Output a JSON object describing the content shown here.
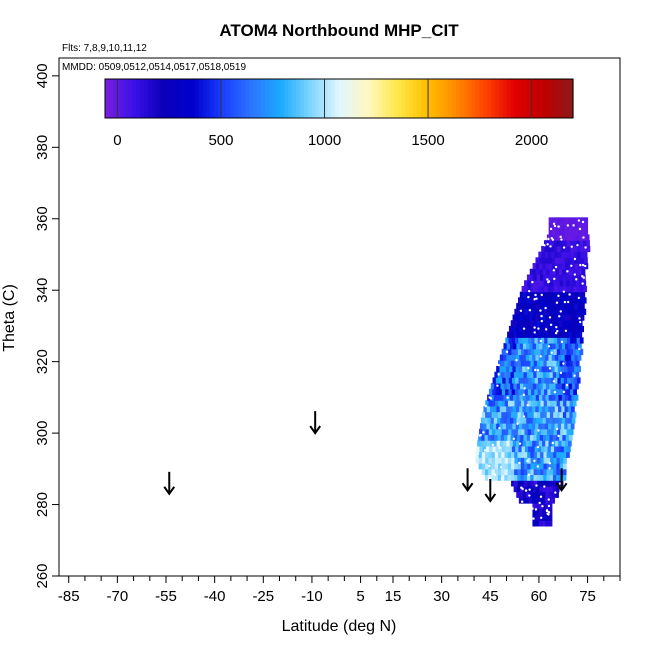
{
  "chart_data": {
    "type": "heatmap",
    "title": "ATOM4 Northbound MHP_CIT",
    "flights_note": "Flts: 7,8,9,10,11,12",
    "dates_note": "MMDD: 0509,0512,0514,0517,0518,0519",
    "xlabel": "Latitude (deg N)",
    "ylabel": "Theta (C)",
    "xlim": [
      -88,
      85
    ],
    "ylim": [
      260,
      405
    ],
    "x_ticks": [
      -85,
      -70,
      -55,
      -40,
      -25,
      -10,
      5,
      15,
      30,
      45,
      60,
      75
    ],
    "x_tick_labels": [
      "-85",
      "-70",
      "-55",
      "-40",
      "-25",
      "-10",
      "5",
      "15",
      "30",
      "45",
      "60",
      "75"
    ],
    "x_minor_ticks": [
      -80,
      -75,
      -65,
      -60,
      -50,
      -45,
      -35,
      -30,
      -20,
      -15,
      -5,
      0,
      10,
      20,
      25,
      35,
      40,
      50,
      55,
      65,
      70,
      80,
      85
    ],
    "y_ticks": [
      260,
      280,
      300,
      320,
      340,
      360,
      380,
      400
    ],
    "y_tick_labels": [
      "260",
      "280",
      "300",
      "320",
      "340",
      "360",
      "380",
      "400"
    ],
    "colorbar": {
      "range": [
        -60,
        2200
      ],
      "ticks": [
        0,
        500,
        1000,
        1500,
        2000
      ],
      "tick_labels": [
        "0",
        "500",
        "1000",
        "1500",
        "2000"
      ],
      "colors": [
        "#7a1fe0",
        "#3a10e8",
        "#0a00b8",
        "#0000cc",
        "#1a3cff",
        "#2d74ff",
        "#1aaaff",
        "#7cd4ff",
        "#e0f6ff",
        "#fff8c0",
        "#ffe84a",
        "#ffc000",
        "#ff8a00",
        "#ff4400",
        "#e00000",
        "#c00000",
        "#8c1a1a"
      ]
    },
    "arrows": [
      {
        "lat": -54,
        "theta": 283
      },
      {
        "lat": -9,
        "theta": 300
      },
      {
        "lat": 38,
        "theta": 284
      },
      {
        "lat": 45,
        "theta": 281
      },
      {
        "lat": 67,
        "theta": 284
      }
    ],
    "field": {
      "lat_range": [
        38,
        75
      ],
      "theta_range": [
        274,
        360
      ],
      "description_levels": [
        {
          "theta": 358,
          "value": -20
        },
        {
          "theta": 345,
          "value": 60
        },
        {
          "theta": 330,
          "value": 250
        },
        {
          "theta": 315,
          "value": 550
        },
        {
          "theta": 300,
          "value": 700
        },
        {
          "theta": 290,
          "value": 900
        },
        {
          "theta": 280,
          "value": 200
        }
      ]
    }
  }
}
